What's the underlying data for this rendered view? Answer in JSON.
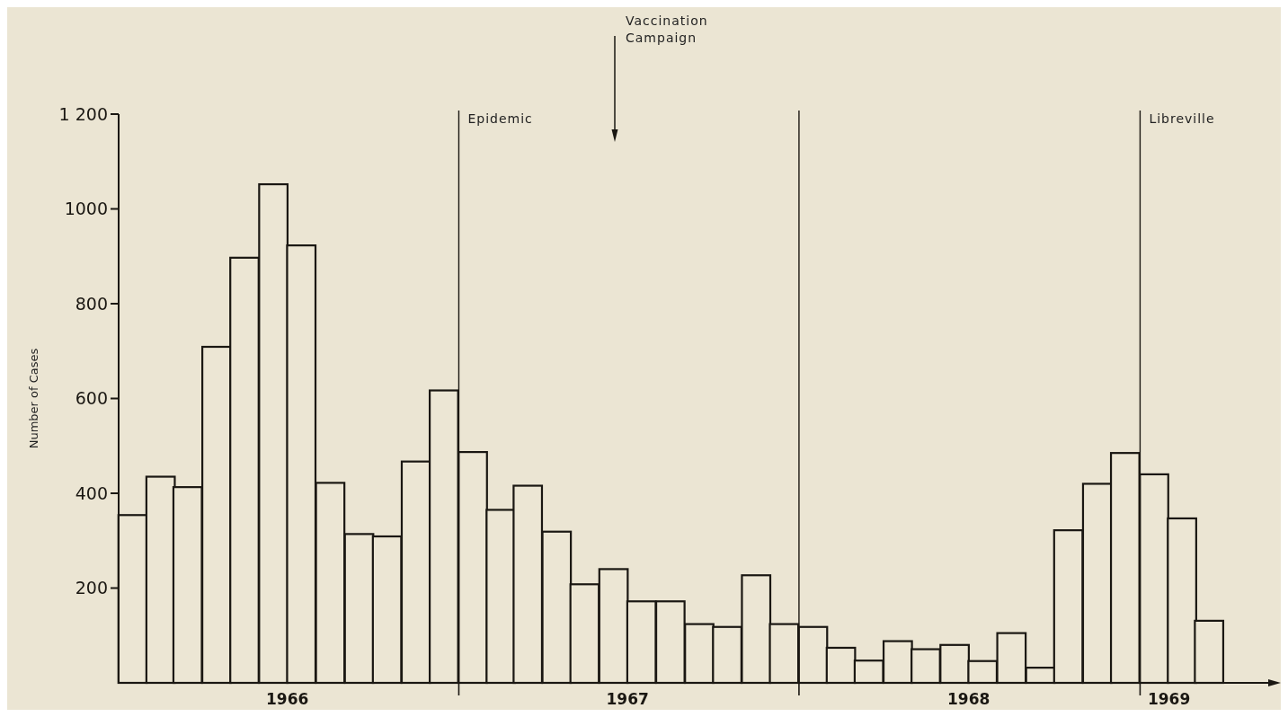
{
  "chart_data": {
    "type": "bar",
    "ylabel": "Number of Cases",
    "x": [
      "1966-01-16",
      "1966-02-15",
      "1966-03-16",
      "1966-04-16",
      "1966-05-16",
      "1966-06-16",
      "1966-07-16",
      "1966-08-16",
      "1966-09-16",
      "1966-10-16",
      "1966-11-16",
      "1966-12-16",
      "1967-01-16",
      "1967-02-15",
      "1967-03-16",
      "1967-04-16",
      "1967-05-16",
      "1967-06-16",
      "1967-07-16",
      "1967-08-16",
      "1967-09-16",
      "1967-10-16",
      "1967-11-16",
      "1967-12-16",
      "1968-01-16",
      "1968-02-15",
      "1968-03-16",
      "1968-04-16",
      "1968-05-16",
      "1968-06-16",
      "1968-07-16",
      "1968-08-16",
      "1968-09-16",
      "1968-10-16",
      "1968-11-16",
      "1968-12-16",
      "1969-01-16",
      "1969-02-15",
      "1969-03-16"
    ],
    "values": [
      354,
      435,
      413,
      709,
      897,
      1052,
      923,
      422,
      314,
      309,
      467,
      617,
      487,
      365,
      416,
      319,
      208,
      240,
      172,
      172,
      124,
      118,
      227,
      124,
      118,
      74,
      47,
      88,
      71,
      80,
      46,
      105,
      32,
      322,
      420,
      485,
      440,
      347,
      131
    ],
    "color": "#ece6d4",
    "xlim": [
      "1966-01",
      "1969-06"
    ],
    "xticks": [
      {
        "value": "1966-07",
        "label": "1966"
      },
      {
        "value": "1967-01",
        "label": null
      },
      {
        "value": "1967-07",
        "label": "1967"
      },
      {
        "value": "1968-01",
        "label": null
      },
      {
        "value": "1968-07",
        "label": "1968"
      },
      {
        "value": "1969-01",
        "label": null
      },
      {
        "value": "1969-02",
        "label": "1969"
      }
    ],
    "ylim": [
      0,
      1200
    ],
    "yticks": [
      200,
      400,
      600,
      800,
      1000,
      {
        "value": 1200,
        "label": "1 200"
      }
    ],
    "ref_lines": [
      {
        "axis": "x",
        "value": "1967-01",
        "label": "Epidemic"
      },
      {
        "axis": "x",
        "value": "1968-01",
        "label": null
      },
      {
        "axis": "x",
        "value": "1969-01",
        "label": "Libreville"
      }
    ],
    "annotations": [
      "Vaccination Campaign"
    ]
  }
}
